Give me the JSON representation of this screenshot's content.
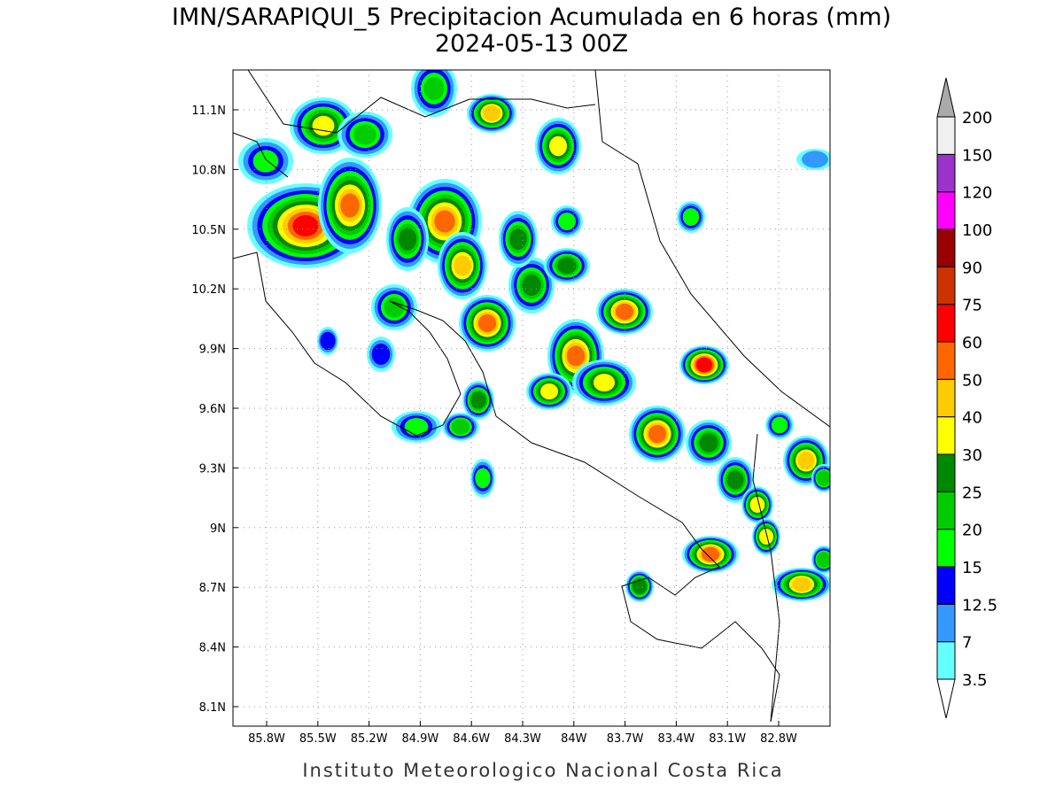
{
  "header": {
    "title": "IMN/SARAPIQUI_5 Precipitacion Acumulada en 6 horas (mm)",
    "subtitle": "2024-05-13 00Z"
  },
  "map": {
    "lat_labels": [
      "11.1N",
      "10.8N",
      "10.5N",
      "10.2N",
      "9.9N",
      "9.6N",
      "9.3N",
      "9N",
      "8.7N",
      "8.4N",
      "8.1N"
    ],
    "lon_labels": [
      "85.8W",
      "85.5W",
      "85.2W",
      "84.9W",
      "84.6W",
      "84.3W",
      "84W",
      "83.7W",
      "83.4W",
      "83.1W",
      "82.8W"
    ]
  },
  "colorbar": {
    "labels": [
      "3.5",
      "7",
      "12.5",
      "15",
      "20",
      "25",
      "30",
      "40",
      "50",
      "60",
      "75",
      "90",
      "100",
      "120",
      "150",
      "200"
    ],
    "colors": [
      "#66ffff",
      "#3399ff",
      "#0000ff",
      "#00ff00",
      "#00cc00",
      "#008800",
      "#ffff00",
      "#ffcc00",
      "#ff6600",
      "#ff0000",
      "#cc3300",
      "#990000",
      "#ff00ff",
      "#9933cc",
      "#f0f0f0"
    ],
    "under_color": "#ffffff",
    "over_color": "#aaaaaa"
  },
  "footer": "Instituto Meteorologico Nacional Costa Rica"
}
